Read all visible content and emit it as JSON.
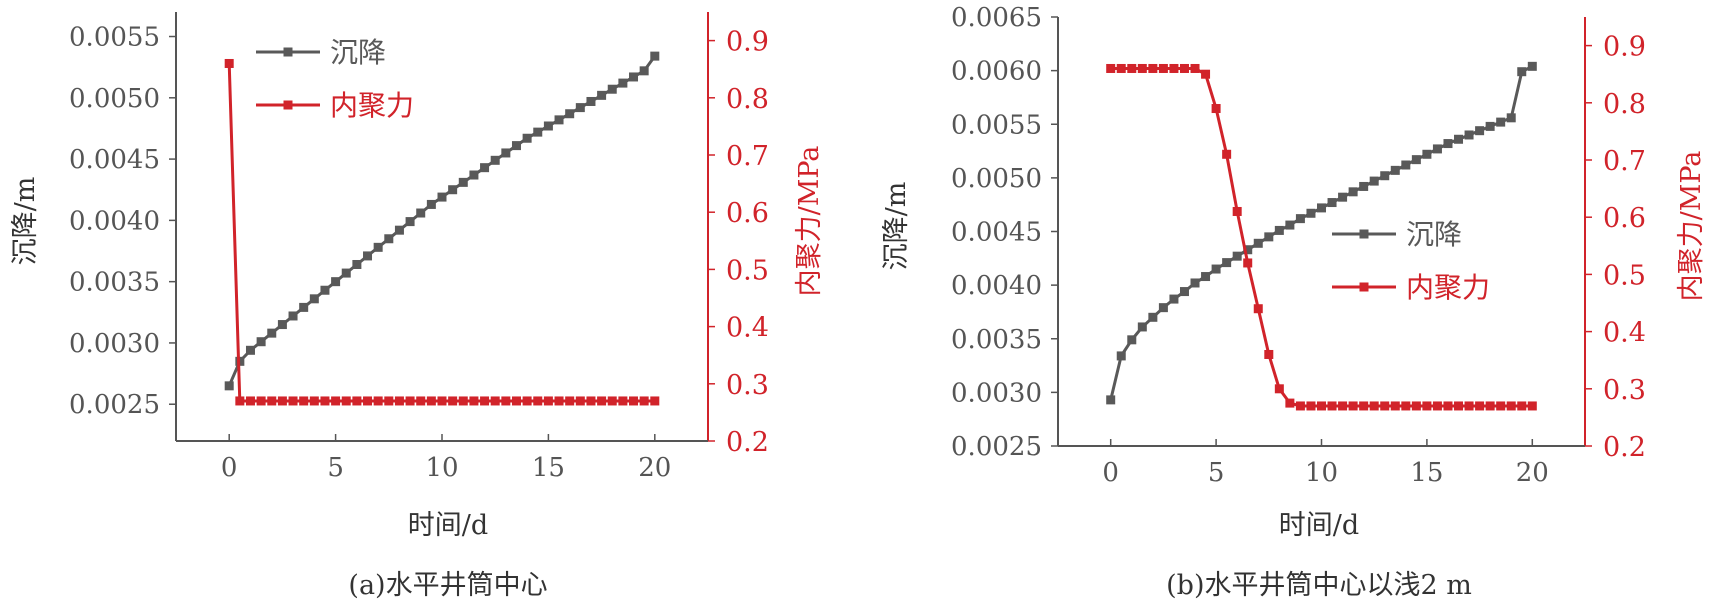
{
  "colors": {
    "settlement": "#595959",
    "cohesion": "#d1232a",
    "axis": "#555555"
  },
  "chart_data": [
    {
      "type": "line",
      "caption": "(a)水平井筒中心",
      "xlabel": "时间/d",
      "ylabel_left": "沉降/m",
      "ylabel_right": "内聚力/MPa",
      "xlim": [
        -2.5,
        22.5
      ],
      "ylim_left": [
        0.0022,
        0.0057
      ],
      "ylim_right": [
        0.2,
        0.95
      ],
      "xticks": [
        "0",
        "5",
        "10",
        "15",
        "20"
      ],
      "yticks_left": [
        "0.0025",
        "0.0030",
        "0.0035",
        "0.0040",
        "0.0045",
        "0.0050",
        "0.0055"
      ],
      "yticks_right": [
        "0.2",
        "0.3",
        "0.4",
        "0.5",
        "0.6",
        "0.7",
        "0.8",
        "0.9"
      ],
      "legend_position": "top-left",
      "series": [
        {
          "name": "沉降",
          "axis": "left",
          "x": [
            0,
            0.5,
            1,
            1.5,
            2,
            2.5,
            3,
            3.5,
            4,
            4.5,
            5,
            5.5,
            6,
            6.5,
            7,
            7.5,
            8,
            8.5,
            9,
            9.5,
            10,
            10.5,
            11,
            11.5,
            12,
            12.5,
            13,
            13.5,
            14,
            14.5,
            15,
            15.5,
            16,
            16.5,
            17,
            17.5,
            18,
            18.5,
            19,
            19.5,
            20
          ],
          "y": [
            0.00265,
            0.00285,
            0.00294,
            0.00301,
            0.00308,
            0.00315,
            0.00322,
            0.00329,
            0.00336,
            0.00343,
            0.0035,
            0.00357,
            0.00364,
            0.00371,
            0.00378,
            0.00385,
            0.00392,
            0.00399,
            0.00406,
            0.00413,
            0.00419,
            0.00425,
            0.00431,
            0.00437,
            0.00443,
            0.00449,
            0.00455,
            0.00461,
            0.00467,
            0.00472,
            0.00477,
            0.00482,
            0.00487,
            0.00492,
            0.00497,
            0.00502,
            0.00507,
            0.00512,
            0.00517,
            0.00522,
            0.00534
          ]
        },
        {
          "name": "内聚力",
          "axis": "right",
          "x": [
            0,
            0.5,
            1,
            1.5,
            2,
            2.5,
            3,
            3.5,
            4,
            4.5,
            5,
            5.5,
            6,
            6.5,
            7,
            7.5,
            8,
            8.5,
            9,
            9.5,
            10,
            10.5,
            11,
            11.5,
            12,
            12.5,
            13,
            13.5,
            14,
            14.5,
            15,
            15.5,
            16,
            16.5,
            17,
            17.5,
            18,
            18.5,
            19,
            19.5,
            20
          ],
          "y": [
            0.86,
            0.27,
            0.27,
            0.27,
            0.27,
            0.27,
            0.27,
            0.27,
            0.27,
            0.27,
            0.27,
            0.27,
            0.27,
            0.27,
            0.27,
            0.27,
            0.27,
            0.27,
            0.27,
            0.27,
            0.27,
            0.27,
            0.27,
            0.27,
            0.27,
            0.27,
            0.27,
            0.27,
            0.27,
            0.27,
            0.27,
            0.27,
            0.27,
            0.27,
            0.27,
            0.27,
            0.27,
            0.27,
            0.27,
            0.27,
            0.27
          ]
        }
      ]
    },
    {
      "type": "line",
      "caption": "(b)水平井筒中心以浅2 m",
      "xlabel": "时间/d",
      "ylabel_left": "沉降/m",
      "ylabel_right": "内聚力/MPa",
      "xlim": [
        -2.5,
        22.5
      ],
      "ylim_left": [
        0.0025,
        0.0065
      ],
      "ylim_right": [
        0.2,
        0.95
      ],
      "xticks": [
        "0",
        "5",
        "10",
        "15",
        "20"
      ],
      "yticks_left": [
        "0.0025",
        "0.0030",
        "0.0035",
        "0.0040",
        "0.0045",
        "0.0050",
        "0.0055",
        "0.0060",
        "0.0065"
      ],
      "yticks_right": [
        "0.2",
        "0.3",
        "0.4",
        "0.5",
        "0.6",
        "0.7",
        "0.8",
        "0.9"
      ],
      "legend_position": "center-right",
      "series": [
        {
          "name": "沉降",
          "axis": "left",
          "x": [
            0,
            0.5,
            1,
            1.5,
            2,
            2.5,
            3,
            3.5,
            4,
            4.5,
            5,
            5.5,
            6,
            6.5,
            7,
            7.5,
            8,
            8.5,
            9,
            9.5,
            10,
            10.5,
            11,
            11.5,
            12,
            12.5,
            13,
            13.5,
            14,
            14.5,
            15,
            15.5,
            16,
            16.5,
            17,
            17.5,
            18,
            18.5,
            19,
            19.5,
            20
          ],
          "y": [
            0.00293,
            0.00334,
            0.00349,
            0.00361,
            0.0037,
            0.00379,
            0.00387,
            0.00394,
            0.00402,
            0.00408,
            0.00415,
            0.00421,
            0.00427,
            0.00433,
            0.00439,
            0.00445,
            0.00451,
            0.00456,
            0.00462,
            0.00467,
            0.00472,
            0.00477,
            0.00482,
            0.00487,
            0.00492,
            0.00497,
            0.00502,
            0.00507,
            0.00512,
            0.00517,
            0.00522,
            0.00527,
            0.00532,
            0.00536,
            0.0054,
            0.00544,
            0.00548,
            0.00552,
            0.00556,
            0.00599,
            0.00604
          ]
        },
        {
          "name": "内聚力",
          "axis": "right",
          "x": [
            0,
            0.5,
            1,
            1.5,
            2,
            2.5,
            3,
            3.5,
            4,
            4.5,
            5,
            5.5,
            6,
            6.5,
            7,
            7.5,
            8,
            8.5,
            9,
            9.5,
            10,
            10.5,
            11,
            11.5,
            12,
            12.5,
            13,
            13.5,
            14,
            14.5,
            15,
            15.5,
            16,
            16.5,
            17,
            17.5,
            18,
            18.5,
            19,
            19.5,
            20
          ],
          "y": [
            0.86,
            0.86,
            0.86,
            0.86,
            0.86,
            0.86,
            0.86,
            0.86,
            0.86,
            0.85,
            0.79,
            0.71,
            0.61,
            0.52,
            0.44,
            0.36,
            0.3,
            0.275,
            0.27,
            0.27,
            0.27,
            0.27,
            0.27,
            0.27,
            0.27,
            0.27,
            0.27,
            0.27,
            0.27,
            0.27,
            0.27,
            0.27,
            0.27,
            0.27,
            0.27,
            0.27,
            0.27,
            0.27,
            0.27,
            0.27,
            0.27
          ]
        }
      ]
    }
  ]
}
